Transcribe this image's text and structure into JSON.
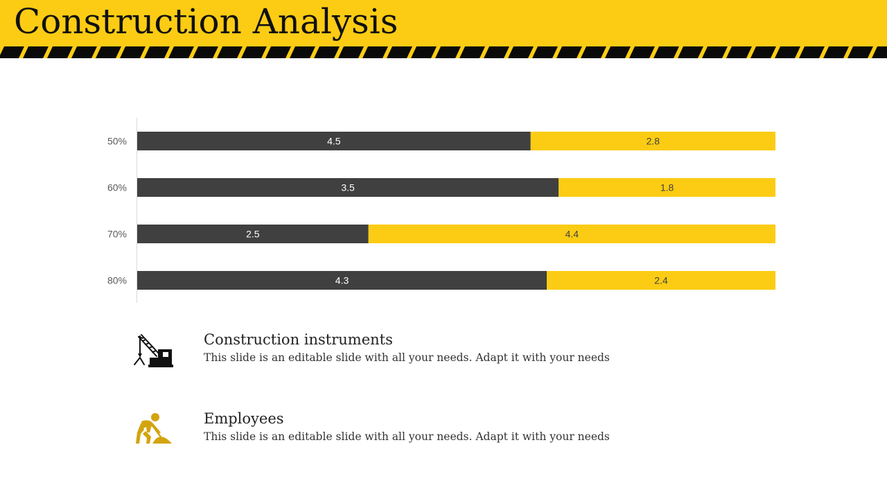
{
  "slide": {
    "title": "Construction Analysis"
  },
  "colors": {
    "header": "#FCCC14",
    "dark_bar": "#404040",
    "accent_bar": "#FCCC14",
    "axis": "#D9D9D9"
  },
  "chart_data": {
    "type": "bar",
    "orientation": "horizontal",
    "stacked": true,
    "categories": [
      "50%",
      "60%",
      "70%",
      "80%"
    ],
    "series": [
      {
        "values": [
          4.5,
          3.5,
          2.5,
          4.3
        ],
        "color": "#404040"
      },
      {
        "values": [
          2.8,
          1.8,
          4.4,
          2.4
        ],
        "color": "#FCCC14"
      }
    ],
    "normalized_100_percent": true,
    "data_labels": true,
    "grid": false,
    "legend": "none",
    "title": "",
    "xlabel": "",
    "ylabel": ""
  },
  "legend_items": [
    {
      "title": "Construction instruments",
      "description": "This slide is an editable slide with all your needs. Adapt it with your needs",
      "icon": "crane-icon"
    },
    {
      "title": "Employees",
      "description": "This slide is an editable slide with all your needs. Adapt it with your needs",
      "icon": "worker-digging-icon"
    }
  ]
}
